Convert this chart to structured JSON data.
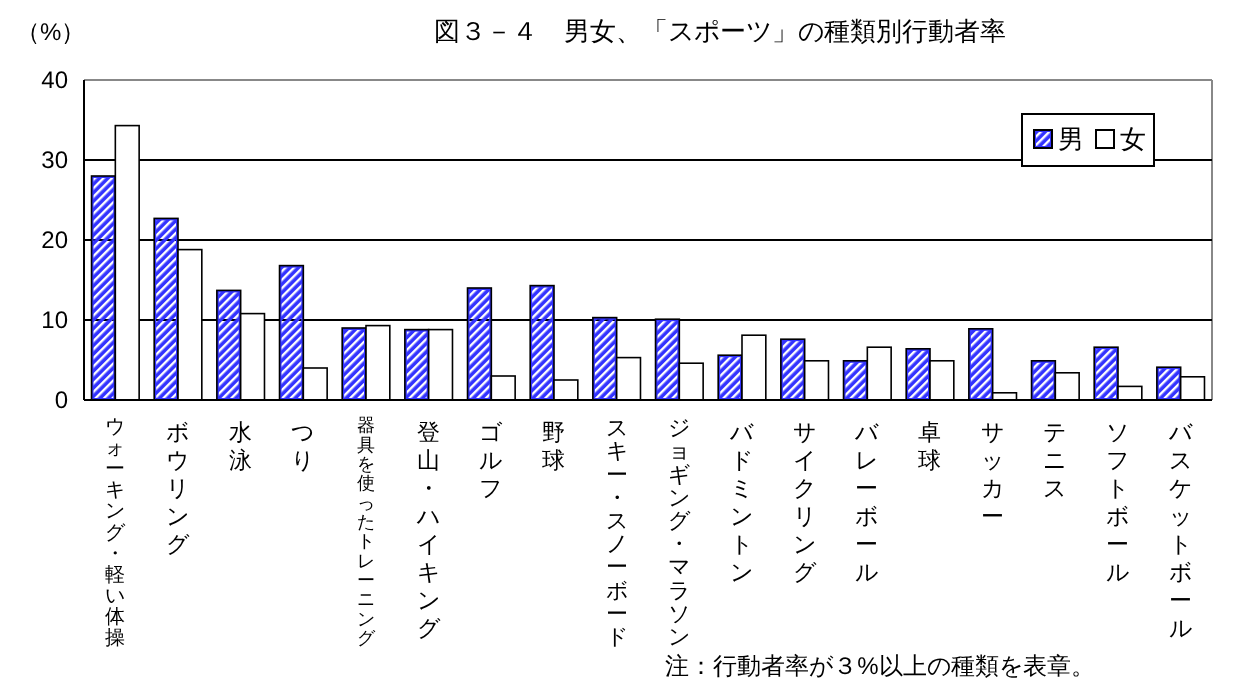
{
  "chart_data": {
    "type": "bar",
    "title": "図３－４　男女、「スポーツ」の種類別行動者率",
    "ylabel": "（%）",
    "categories": [
      "ウォーキング・軽い体操",
      "ボウリング",
      "水泳",
      "つり",
      "器具を使ったトレーニング",
      "登山・ハイキング",
      "ゴルフ",
      "野球",
      "スキー・スノーボード",
      "ジョギング・マラソン",
      "バドミントン",
      "サイクリング",
      "バレーボール",
      "卓球",
      "サッカー",
      "テニス",
      "ソフトボール",
      "バスケットボール"
    ],
    "series": [
      {
        "name": "男",
        "color": "#3333ff",
        "values": [
          28.0,
          22.7,
          13.7,
          16.8,
          9.0,
          8.8,
          14.0,
          14.3,
          10.3,
          10.1,
          5.6,
          7.6,
          4.9,
          6.4,
          8.9,
          4.9,
          6.6,
          4.1
        ]
      },
      {
        "name": "女",
        "color": "#ffffff",
        "values": [
          34.3,
          18.8,
          10.8,
          4.0,
          9.3,
          8.8,
          3.0,
          2.5,
          5.3,
          4.6,
          8.1,
          4.9,
          6.6,
          4.9,
          0.9,
          3.4,
          1.7,
          2.9
        ]
      }
    ],
    "ylim": [
      0,
      40
    ],
    "yticks": [
      0,
      10,
      20,
      30,
      40
    ],
    "grid": "y",
    "legend": "top right",
    "annotations": [
      "注：行動者率が３%以上の種類を表章。"
    ]
  }
}
